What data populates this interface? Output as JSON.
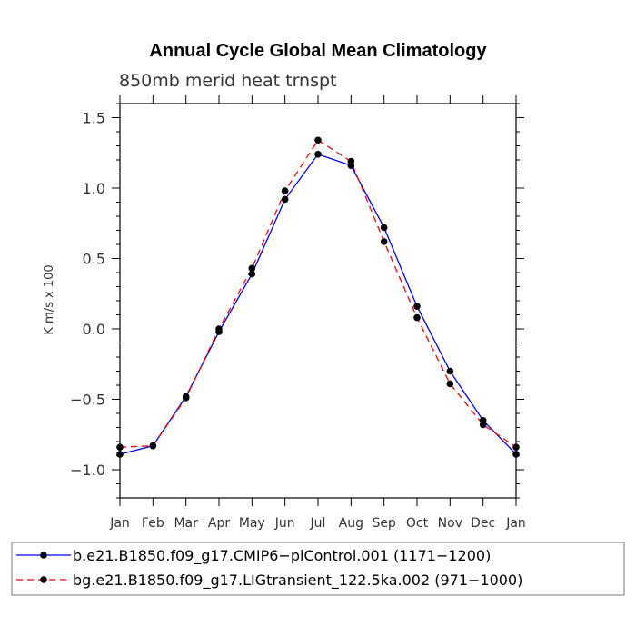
{
  "chart_data": {
    "type": "line",
    "title": "Annual Cycle Global Mean Climatology",
    "subtitle": "850mb merid heat trnspt",
    "xlabel": "",
    "ylabel": "K m/s x 100",
    "categories": [
      "Jan",
      "Feb",
      "Mar",
      "Apr",
      "May",
      "Jun",
      "Jul",
      "Aug",
      "Sep",
      "Oct",
      "Nov",
      "Dec",
      "Jan"
    ],
    "ylim": [
      -1.2,
      1.6
    ],
    "yticks": [
      -1.0,
      -0.5,
      0.0,
      0.5,
      1.0,
      1.5
    ],
    "ytick_labels": [
      "−1.0",
      "−0.5",
      "0.0",
      "0.5",
      "1.0",
      "1.5"
    ],
    "grid": false,
    "legend_position": "bottom",
    "series": [
      {
        "name": "b.e21.B1850.f09_g17.CMIP6−piControl.001 (1171−1200)",
        "color": "#0000ff",
        "line_style": "solid",
        "marker": "circle",
        "values": [
          -0.89,
          -0.83,
          -0.48,
          -0.02,
          0.39,
          0.92,
          1.24,
          1.16,
          0.72,
          0.16,
          -0.3,
          -0.65,
          -0.89
        ]
      },
      {
        "name": "bg.e21.B1850.f09_g17.LIGtransient_122.5ka.002 (971−1000)",
        "color": "#ff0000",
        "line_style": "dashed",
        "marker": "circle",
        "values": [
          -0.84,
          -0.83,
          -0.49,
          0.0,
          0.43,
          0.98,
          1.34,
          1.19,
          0.62,
          0.08,
          -0.39,
          -0.68,
          -0.84
        ]
      }
    ]
  }
}
